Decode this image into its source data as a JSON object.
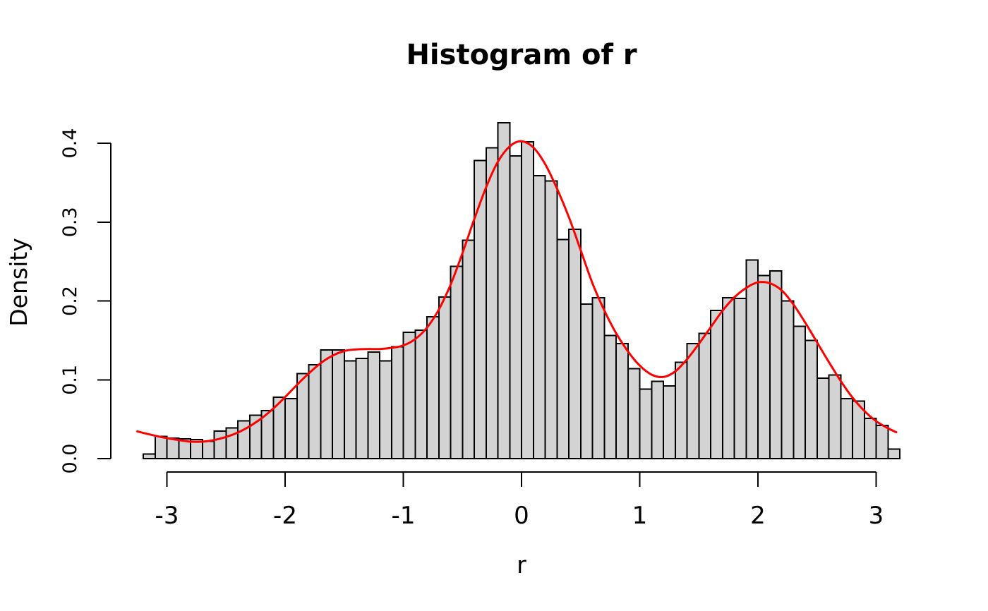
{
  "figure": {
    "title": "Histogram of r",
    "xlabel": "r",
    "ylabel": "Density"
  },
  "chart_data": {
    "type": "bar",
    "subtype": "histogram-with-density-curve",
    "title": "Histogram of r",
    "xlabel": "r",
    "ylabel": "Density",
    "xlim": [
      -3.2,
      3.2
    ],
    "ylim": [
      0,
      0.425
    ],
    "grid": "off",
    "x_ticks": [
      -3,
      -2,
      -1,
      0,
      1,
      2,
      3
    ],
    "x_tick_labels": [
      "-3",
      "-2",
      "-1",
      "0",
      "1",
      "2",
      "3"
    ],
    "y_ticks": [
      0.0,
      0.1,
      0.2,
      0.3,
      0.4
    ],
    "y_tick_labels": [
      "0.0",
      "0.1",
      "0.2",
      "0.3",
      "0.4"
    ],
    "bin_start": -3.2,
    "bin_width": 0.1,
    "bar_densities": [
      0.006,
      0.028,
      0.026,
      0.025,
      0.024,
      0.022,
      0.035,
      0.039,
      0.048,
      0.055,
      0.061,
      0.078,
      0.076,
      0.108,
      0.119,
      0.138,
      0.138,
      0.124,
      0.127,
      0.135,
      0.124,
      0.142,
      0.16,
      0.163,
      0.18,
      0.205,
      0.244,
      0.277,
      0.378,
      0.394,
      0.426,
      0.384,
      0.402,
      0.359,
      0.352,
      0.278,
      0.291,
      0.196,
      0.204,
      0.156,
      0.146,
      0.114,
      0.088,
      0.098,
      0.092,
      0.122,
      0.146,
      0.159,
      0.188,
      0.204,
      0.203,
      0.252,
      0.232,
      0.238,
      0.2,
      0.168,
      0.15,
      0.102,
      0.106,
      0.076,
      0.073,
      0.051,
      0.042,
      0.012
    ],
    "density_curve": {
      "points": [
        [
          -3.25,
          0.0345
        ],
        [
          -3.1,
          0.029
        ],
        [
          -3.0,
          0.026
        ],
        [
          -2.9,
          0.0235
        ],
        [
          -2.8,
          0.0215
        ],
        [
          -2.7,
          0.0215
        ],
        [
          -2.6,
          0.0235
        ],
        [
          -2.5,
          0.0275
        ],
        [
          -2.4,
          0.033
        ],
        [
          -2.3,
          0.041
        ],
        [
          -2.2,
          0.051
        ],
        [
          -2.1,
          0.0635
        ],
        [
          -2.0,
          0.078
        ],
        [
          -1.9,
          0.0935
        ],
        [
          -1.8,
          0.108
        ],
        [
          -1.7,
          0.121
        ],
        [
          -1.6,
          0.1305
        ],
        [
          -1.5,
          0.1365
        ],
        [
          -1.4,
          0.1385
        ],
        [
          -1.3,
          0.139
        ],
        [
          -1.2,
          0.139
        ],
        [
          -1.1,
          0.1405
        ],
        [
          -1.0,
          0.1435
        ],
        [
          -0.9,
          0.1515
        ],
        [
          -0.8,
          0.166
        ],
        [
          -0.7,
          0.189
        ],
        [
          -0.6,
          0.2205
        ],
        [
          -0.5,
          0.2605
        ],
        [
          -0.4,
          0.3035
        ],
        [
          -0.3,
          0.344
        ],
        [
          -0.2,
          0.3765
        ],
        [
          -0.1,
          0.396
        ],
        [
          0.0,
          0.4025
        ],
        [
          0.1,
          0.3945
        ],
        [
          0.2,
          0.3735
        ],
        [
          0.3,
          0.3425
        ],
        [
          0.4,
          0.3065
        ],
        [
          0.5,
          0.2645
        ],
        [
          0.6,
          0.2225
        ],
        [
          0.7,
          0.188
        ],
        [
          0.8,
          0.159
        ],
        [
          0.9,
          0.136
        ],
        [
          1.0,
          0.118
        ],
        [
          1.1,
          0.1065
        ],
        [
          1.2,
          0.1035
        ],
        [
          1.3,
          0.1105
        ],
        [
          1.4,
          0.126
        ],
        [
          1.5,
          0.1455
        ],
        [
          1.6,
          0.1665
        ],
        [
          1.7,
          0.1875
        ],
        [
          1.8,
          0.2045
        ],
        [
          1.9,
          0.2165
        ],
        [
          2.0,
          0.2235
        ],
        [
          2.1,
          0.2225
        ],
        [
          2.2,
          0.2135
        ],
        [
          2.3,
          0.1955
        ],
        [
          2.4,
          0.1725
        ],
        [
          2.5,
          0.1475
        ],
        [
          2.6,
          0.1225
        ],
        [
          2.7,
          0.0985
        ],
        [
          2.8,
          0.0775
        ],
        [
          2.9,
          0.0605
        ],
        [
          3.0,
          0.0475
        ],
        [
          3.1,
          0.0385
        ],
        [
          3.17,
          0.0335
        ]
      ]
    },
    "colors": {
      "background": "#ffffff",
      "bar_fill": "#d3d3d3",
      "bar_stroke": "#000000",
      "axis": "#000000",
      "curve": "#ff0000"
    }
  }
}
